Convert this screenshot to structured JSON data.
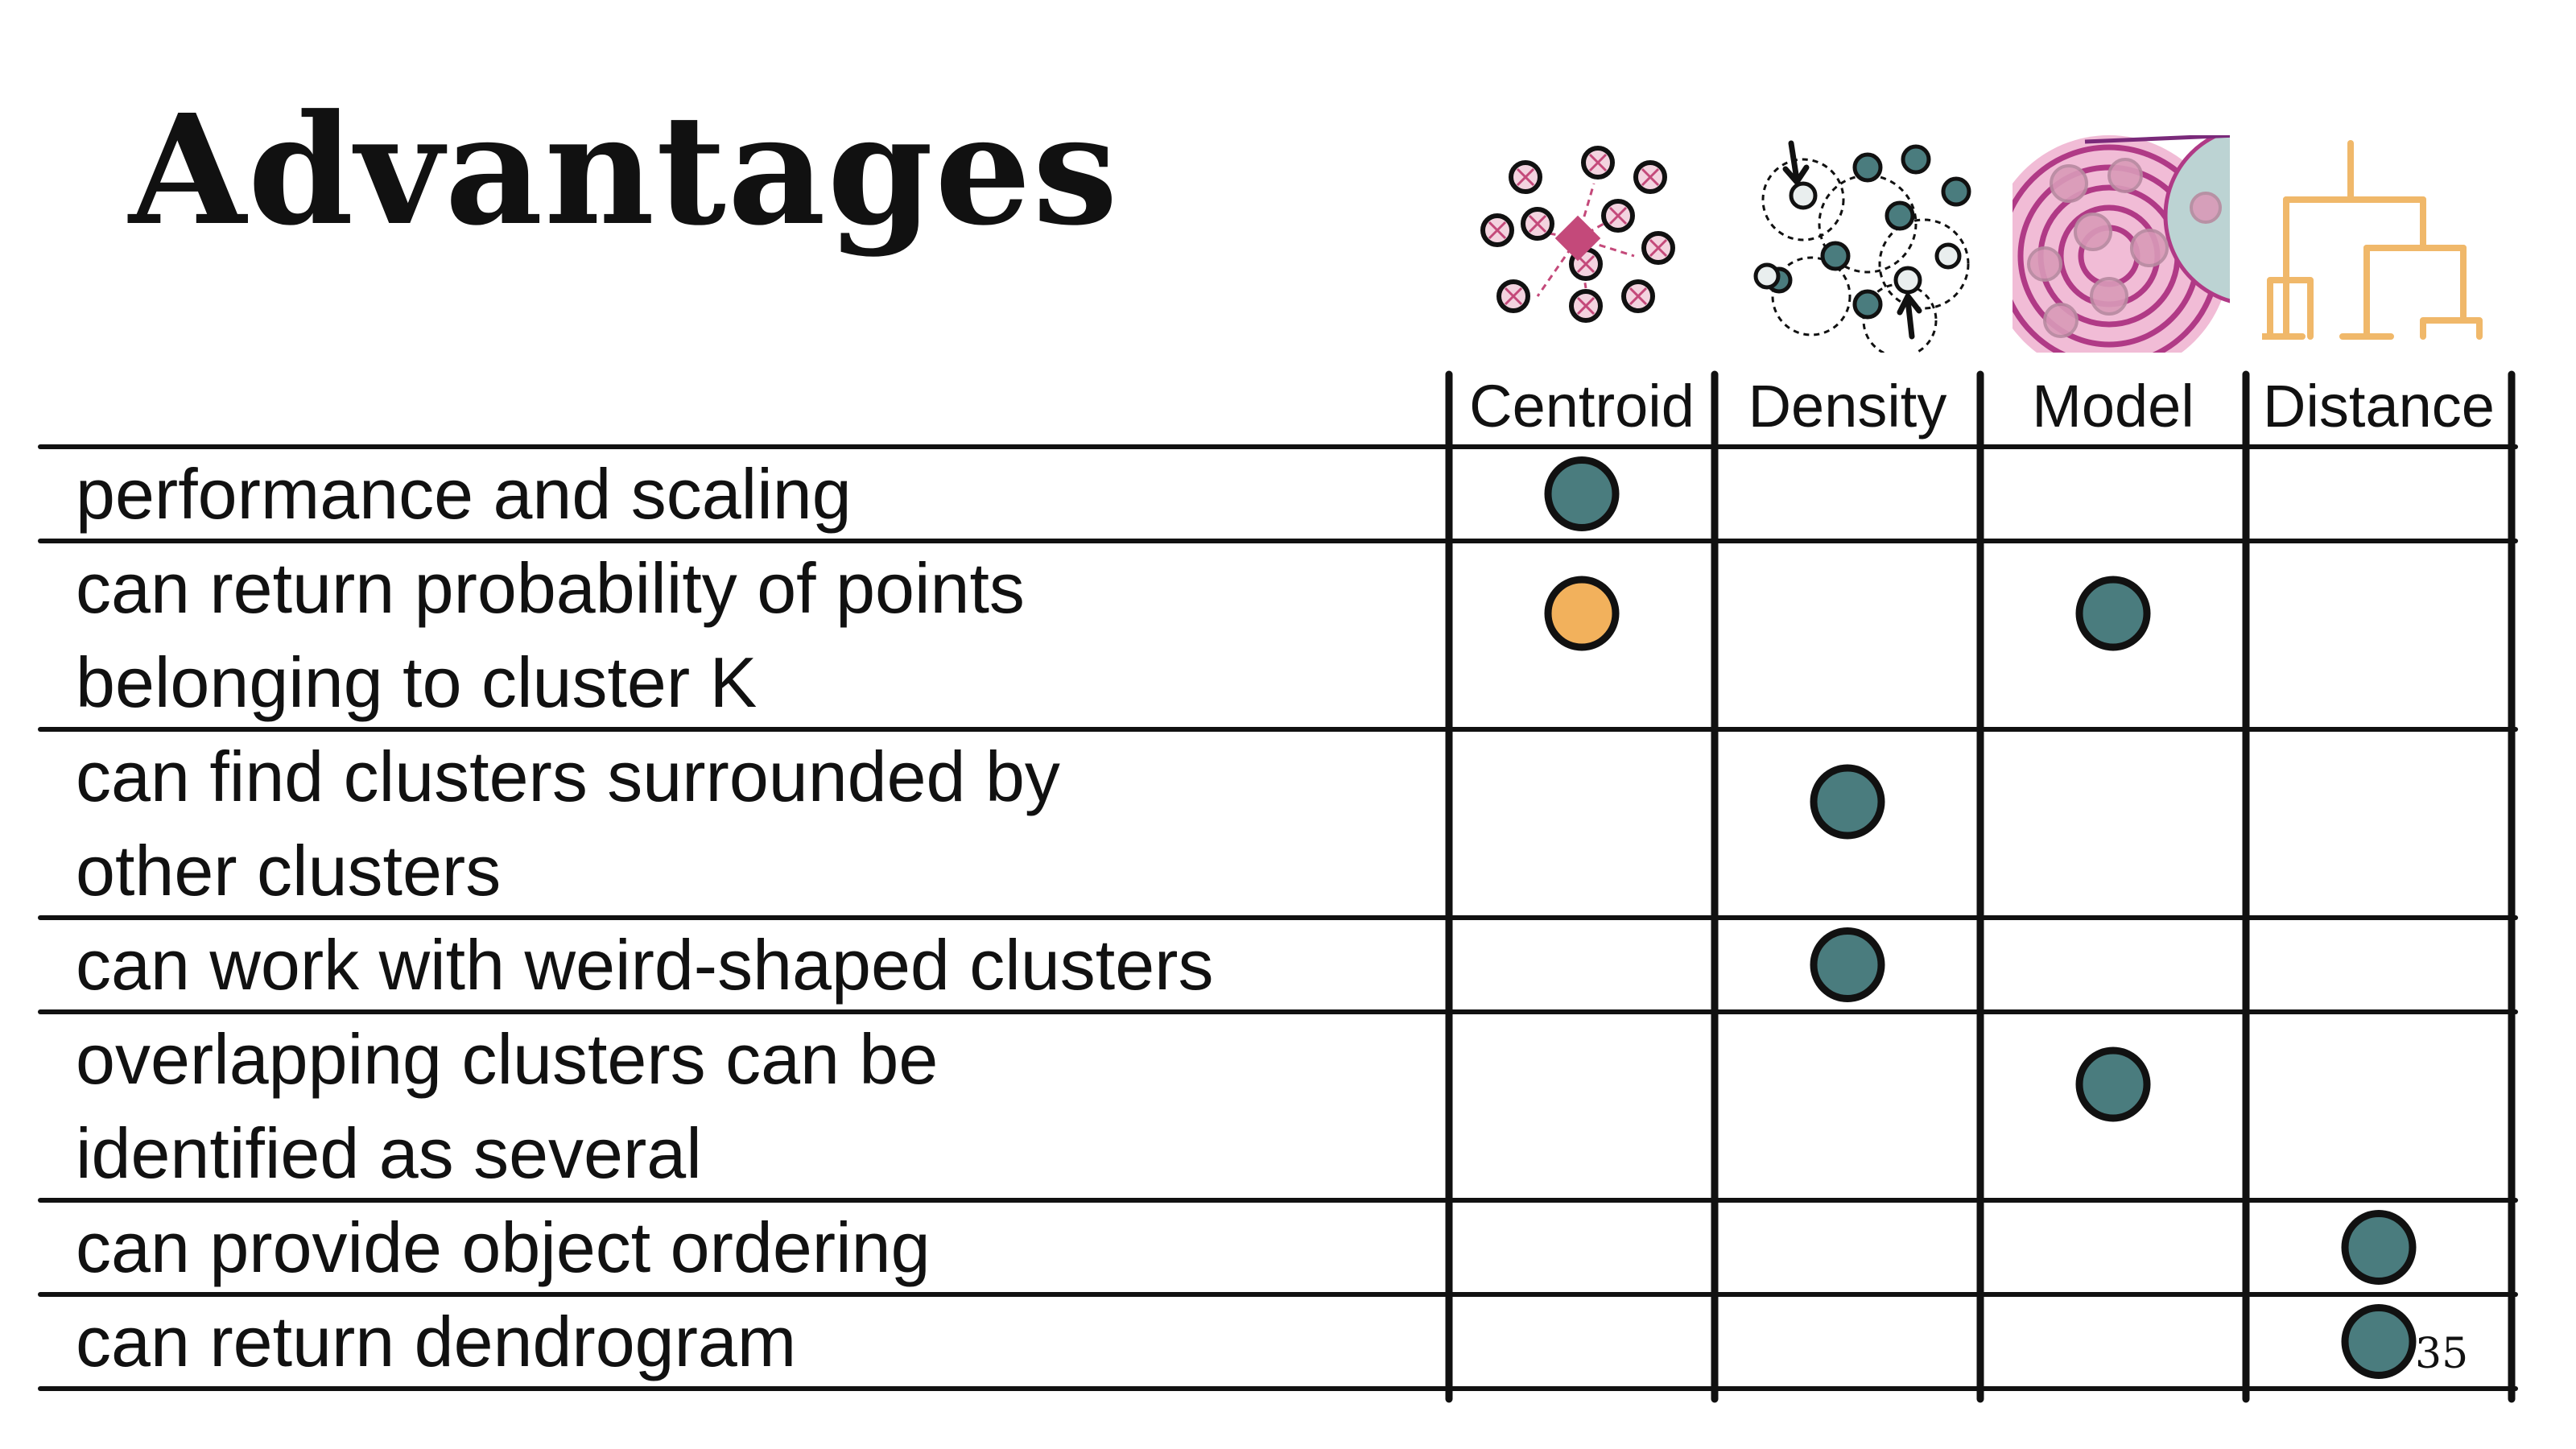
{
  "slide": {
    "title": "Advantages",
    "page_number": "35"
  },
  "table": {
    "columns": [
      {
        "label": "Centroid",
        "icon": "centroid-clusters-icon"
      },
      {
        "label": "Density",
        "icon": "density-clusters-icon"
      },
      {
        "label": "Model",
        "icon": "model-clusters-icon"
      },
      {
        "label": "Distance",
        "icon": "dendrogram-icon"
      }
    ],
    "rows": [
      {
        "lines": [
          "performance and scaling"
        ],
        "marks": [
          "teal",
          null,
          null,
          null
        ]
      },
      {
        "lines": [
          "can return probability of points",
          "belonging to cluster K"
        ],
        "marks": [
          "orange",
          null,
          "teal",
          null
        ]
      },
      {
        "lines": [
          "can find clusters surrounded by",
          "other clusters"
        ],
        "marks": [
          null,
          "teal",
          null,
          null
        ]
      },
      {
        "lines": [
          "can work with weird-shaped clusters"
        ],
        "marks": [
          null,
          "teal",
          null,
          null
        ]
      },
      {
        "lines": [
          "overlapping clusters can be",
          "identified as several"
        ],
        "marks": [
          null,
          null,
          "teal",
          null
        ]
      },
      {
        "lines": [
          "can provide object ordering"
        ],
        "marks": [
          null,
          null,
          null,
          "teal"
        ]
      },
      {
        "lines": [
          "can return dendrogram"
        ],
        "marks": [
          null,
          null,
          null,
          "teal"
        ]
      }
    ]
  },
  "colors": {
    "teal": "#4a7c7e",
    "orange": "#f2b15c",
    "pink": "#c4497a",
    "magenta": "#b03a86",
    "dendrogram": "#f0b86a",
    "ink": "#111111"
  }
}
